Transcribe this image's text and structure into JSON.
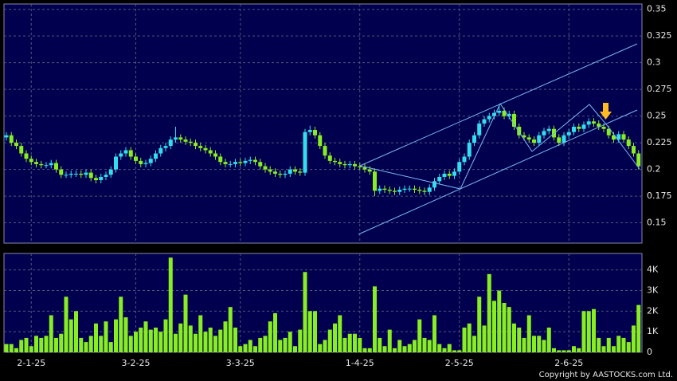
{
  "chart_data": [
    {
      "type": "candlestick",
      "up_color": "#33ddee",
      "down_color": "#88ee22",
      "ylim": [
        0.131,
        0.355
      ],
      "yticks": [
        0.15,
        0.175,
        0.2,
        0.225,
        0.25,
        0.275,
        0.3,
        0.325,
        0.35
      ],
      "grid": true,
      "open": [
        0.23,
        0.232,
        0.225,
        0.222,
        0.215,
        0.21,
        0.207,
        0.205,
        0.204,
        0.204,
        0.206,
        0.2,
        0.195,
        0.195,
        0.196,
        0.196,
        0.195,
        0.197,
        0.192,
        0.19,
        0.193,
        0.195,
        0.2,
        0.212,
        0.215,
        0.218,
        0.212,
        0.208,
        0.205,
        0.206,
        0.21,
        0.215,
        0.22,
        0.222,
        0.228,
        0.23,
        0.228,
        0.226,
        0.225,
        0.222,
        0.22,
        0.218,
        0.215,
        0.212,
        0.207,
        0.205,
        0.205,
        0.207,
        0.206,
        0.208,
        0.209,
        0.207,
        0.203,
        0.2,
        0.198,
        0.196,
        0.195,
        0.196,
        0.2,
        0.198,
        0.197,
        0.235,
        0.237,
        0.232,
        0.222,
        0.213,
        0.208,
        0.207,
        0.205,
        0.204,
        0.205,
        0.203,
        0.202,
        0.2,
        0.198,
        0.18,
        0.182,
        0.181,
        0.18,
        0.179,
        0.181,
        0.182,
        0.182,
        0.181,
        0.18,
        0.179,
        0.183,
        0.189,
        0.193,
        0.196,
        0.194,
        0.198,
        0.207,
        0.212,
        0.225,
        0.232,
        0.243,
        0.247,
        0.25,
        0.253,
        0.255,
        0.25,
        0.252,
        0.24,
        0.232,
        0.23,
        0.228,
        0.225,
        0.232,
        0.236,
        0.238,
        0.23,
        0.225,
        0.232,
        0.235,
        0.24,
        0.238,
        0.242,
        0.245,
        0.243,
        0.24,
        0.238,
        0.232,
        0.228,
        0.233,
        0.228,
        0.222,
        0.215
      ],
      "high": [
        0.235,
        0.235,
        0.228,
        0.225,
        0.218,
        0.213,
        0.21,
        0.208,
        0.207,
        0.209,
        0.209,
        0.203,
        0.198,
        0.199,
        0.199,
        0.199,
        0.2,
        0.2,
        0.195,
        0.196,
        0.198,
        0.203,
        0.215,
        0.218,
        0.221,
        0.221,
        0.215,
        0.211,
        0.209,
        0.213,
        0.218,
        0.223,
        0.225,
        0.231,
        0.24,
        0.233,
        0.231,
        0.229,
        0.228,
        0.225,
        0.223,
        0.221,
        0.218,
        0.215,
        0.21,
        0.208,
        0.21,
        0.21,
        0.211,
        0.212,
        0.212,
        0.21,
        0.206,
        0.203,
        0.201,
        0.199,
        0.199,
        0.203,
        0.203,
        0.201,
        0.238,
        0.241,
        0.24,
        0.235,
        0.225,
        0.216,
        0.211,
        0.21,
        0.208,
        0.208,
        0.208,
        0.206,
        0.205,
        0.203,
        0.201,
        0.185,
        0.185,
        0.184,
        0.183,
        0.184,
        0.185,
        0.185,
        0.185,
        0.184,
        0.183,
        0.186,
        0.192,
        0.196,
        0.199,
        0.199,
        0.201,
        0.21,
        0.215,
        0.228,
        0.235,
        0.246,
        0.25,
        0.253,
        0.256,
        0.26,
        0.258,
        0.255,
        0.255,
        0.243,
        0.235,
        0.233,
        0.231,
        0.235,
        0.239,
        0.241,
        0.241,
        0.233,
        0.235,
        0.238,
        0.243,
        0.243,
        0.245,
        0.248,
        0.248,
        0.246,
        0.243,
        0.241,
        0.235,
        0.236,
        0.236,
        0.231,
        0.225,
        0.218
      ],
      "low": [
        0.227,
        0.222,
        0.219,
        0.212,
        0.207,
        0.204,
        0.202,
        0.201,
        0.201,
        0.201,
        0.197,
        0.192,
        0.192,
        0.192,
        0.193,
        0.192,
        0.192,
        0.189,
        0.187,
        0.187,
        0.19,
        0.192,
        0.197,
        0.209,
        0.212,
        0.209,
        0.205,
        0.202,
        0.202,
        0.203,
        0.207,
        0.212,
        0.217,
        0.219,
        0.225,
        0.225,
        0.223,
        0.222,
        0.219,
        0.217,
        0.215,
        0.212,
        0.209,
        0.204,
        0.202,
        0.202,
        0.202,
        0.203,
        0.203,
        0.205,
        0.204,
        0.2,
        0.197,
        0.195,
        0.193,
        0.192,
        0.192,
        0.193,
        0.195,
        0.194,
        0.194,
        0.232,
        0.229,
        0.219,
        0.21,
        0.205,
        0.204,
        0.202,
        0.201,
        0.201,
        0.2,
        0.199,
        0.197,
        0.195,
        0.175,
        0.177,
        0.178,
        0.177,
        0.176,
        0.176,
        0.178,
        0.179,
        0.178,
        0.177,
        0.176,
        0.176,
        0.18,
        0.186,
        0.19,
        0.191,
        0.191,
        0.195,
        0.204,
        0.209,
        0.222,
        0.229,
        0.24,
        0.244,
        0.247,
        0.25,
        0.247,
        0.247,
        0.237,
        0.229,
        0.227,
        0.225,
        0.222,
        0.222,
        0.229,
        0.233,
        0.227,
        0.222,
        0.222,
        0.229,
        0.232,
        0.235,
        0.235,
        0.239,
        0.24,
        0.237,
        0.235,
        0.229,
        0.225,
        0.225,
        0.225,
        0.219,
        0.212,
        0.2
      ],
      "close": [
        0.232,
        0.225,
        0.222,
        0.215,
        0.21,
        0.207,
        0.205,
        0.204,
        0.204,
        0.206,
        0.2,
        0.195,
        0.195,
        0.196,
        0.196,
        0.195,
        0.197,
        0.192,
        0.19,
        0.193,
        0.195,
        0.2,
        0.212,
        0.215,
        0.218,
        0.212,
        0.208,
        0.205,
        0.206,
        0.21,
        0.215,
        0.22,
        0.222,
        0.228,
        0.23,
        0.228,
        0.226,
        0.225,
        0.222,
        0.22,
        0.218,
        0.215,
        0.212,
        0.207,
        0.205,
        0.205,
        0.207,
        0.206,
        0.208,
        0.209,
        0.207,
        0.203,
        0.2,
        0.198,
        0.196,
        0.195,
        0.196,
        0.2,
        0.198,
        0.197,
        0.235,
        0.237,
        0.232,
        0.222,
        0.213,
        0.208,
        0.207,
        0.205,
        0.204,
        0.205,
        0.203,
        0.202,
        0.2,
        0.198,
        0.18,
        0.182,
        0.181,
        0.18,
        0.179,
        0.181,
        0.182,
        0.182,
        0.181,
        0.18,
        0.179,
        0.183,
        0.189,
        0.193,
        0.196,
        0.194,
        0.198,
        0.207,
        0.212,
        0.225,
        0.232,
        0.243,
        0.247,
        0.25,
        0.253,
        0.255,
        0.25,
        0.252,
        0.24,
        0.232,
        0.23,
        0.228,
        0.225,
        0.232,
        0.236,
        0.238,
        0.23,
        0.225,
        0.232,
        0.235,
        0.24,
        0.238,
        0.242,
        0.245,
        0.243,
        0.24,
        0.238,
        0.232,
        0.228,
        0.233,
        0.228,
        0.222,
        0.215,
        0.203
      ]
    },
    {
      "type": "bar",
      "color": "#88ee22",
      "ylim": [
        0,
        4.8
      ],
      "yticks": [
        {
          "value": 0,
          "label": "0"
        },
        {
          "value": 1,
          "label": "1K"
        },
        {
          "value": 2,
          "label": "2K"
        },
        {
          "value": 3,
          "label": "3K"
        },
        {
          "value": 4,
          "label": "4K"
        }
      ],
      "grid": true,
      "categories": [
        null,
        null,
        null,
        null,
        null,
        "2-1-25",
        null,
        null,
        null,
        null,
        null,
        null,
        null,
        null,
        null,
        null,
        null,
        null,
        null,
        null,
        null,
        null,
        null,
        null,
        null,
        null,
        "3-2-25",
        null,
        null,
        null,
        null,
        null,
        null,
        null,
        null,
        null,
        null,
        null,
        null,
        null,
        null,
        null,
        null,
        null,
        null,
        null,
        null,
        "3-3-25",
        null,
        null,
        null,
        null,
        null,
        null,
        null,
        null,
        null,
        null,
        null,
        null,
        null,
        null,
        null,
        null,
        null,
        null,
        null,
        null,
        null,
        null,
        null,
        "1-4-25",
        null,
        null,
        null,
        null,
        null,
        null,
        null,
        null,
        null,
        null,
        null,
        null,
        null,
        null,
        null,
        null,
        null,
        null,
        null,
        "2-5-25",
        null,
        null,
        null,
        null,
        null,
        null,
        null,
        null,
        null,
        null,
        null,
        null,
        null,
        null,
        null,
        null,
        null,
        null,
        null,
        null,
        null,
        "2-6-25",
        null,
        null,
        null,
        null,
        null,
        null,
        null,
        null,
        null,
        null,
        null,
        null,
        null,
        null
      ],
      "values": [
        0.4,
        0.4,
        0.2,
        0.6,
        0.7,
        0.3,
        0.8,
        0.7,
        0.8,
        1.8,
        0.7,
        0.9,
        2.7,
        1.6,
        2.0,
        0.7,
        0.5,
        0.8,
        1.4,
        0.8,
        1.5,
        0.5,
        1.6,
        2.7,
        1.7,
        0.8,
        1.0,
        1.2,
        1.5,
        1.1,
        1.2,
        1.0,
        1.6,
        4.6,
        0.9,
        1.4,
        2.8,
        1.3,
        0.9,
        1.8,
        1.0,
        1.2,
        0.8,
        1.1,
        1.5,
        2.2,
        1.2,
        0.3,
        0.4,
        0.6,
        0.3,
        0.7,
        0.8,
        1.5,
        1.9,
        0.6,
        0.7,
        1.0,
        0.3,
        1.1,
        3.9,
        2.0,
        2.0,
        0.4,
        0.6,
        1.1,
        1.4,
        1.8,
        0.7,
        0.9,
        0.9,
        0.7,
        0.2,
        0.2,
        3.2,
        0.7,
        0.3,
        1.1,
        0.2,
        0.6,
        0.3,
        0.4,
        0.6,
        1.6,
        0.7,
        0.6,
        1.8,
        0.4,
        0.2,
        0.4,
        0.1,
        0.1,
        1.2,
        1.4,
        0.8,
        2.7,
        1.3,
        3.8,
        2.5,
        3.0,
        2.4,
        2.2,
        1.4,
        1.2,
        0.7,
        1.8,
        0.8,
        0.8,
        0.6,
        1.2,
        0.2,
        0.1,
        0.1,
        0.1,
        0.3,
        0.2,
        2.0,
        2.0,
        2.1,
        0.7,
        0.3,
        0.7,
        0.3,
        0.8,
        0.7,
        0.5,
        1.3,
        2.3
      ],
      "copyright": "Copyright by AASTOCKS.com Ltd."
    }
  ]
}
